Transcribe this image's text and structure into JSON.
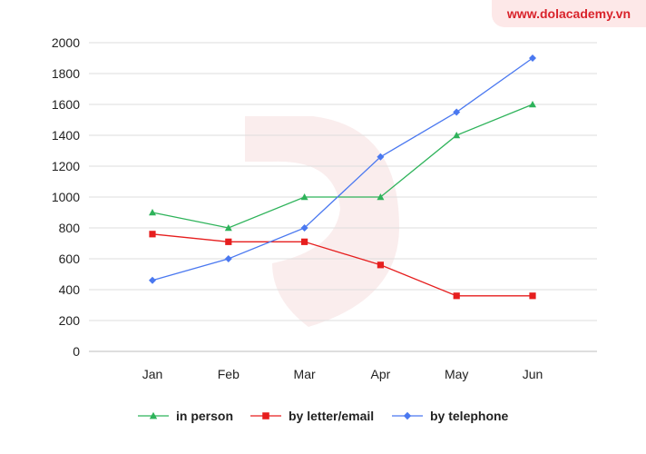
{
  "watermark": {
    "text": "www.dolacademy.vn"
  },
  "chart_data": {
    "type": "line",
    "categories": [
      "Jan",
      "Feb",
      "Mar",
      "Apr",
      "May",
      "Jun"
    ],
    "series": [
      {
        "name": "in person",
        "color": "#2eb35a",
        "marker": "triangle",
        "values": [
          900,
          800,
          1000,
          1000,
          1400,
          1600
        ]
      },
      {
        "name": "by letter/email",
        "color": "#e61e1e",
        "marker": "square",
        "values": [
          760,
          710,
          710,
          560,
          360,
          360
        ]
      },
      {
        "name": "by telephone",
        "color": "#4a78f0",
        "marker": "diamond",
        "values": [
          460,
          600,
          800,
          1260,
          1550,
          1900
        ]
      }
    ],
    "ylim": [
      0,
      2000
    ],
    "yticks": [
      "0",
      "200",
      "400",
      "600",
      "800",
      "1000",
      "1200",
      "1400",
      "1600",
      "1800",
      "2000"
    ],
    "grid": true,
    "legend_position": "bottom",
    "title": "",
    "xlabel": "",
    "ylabel": ""
  }
}
